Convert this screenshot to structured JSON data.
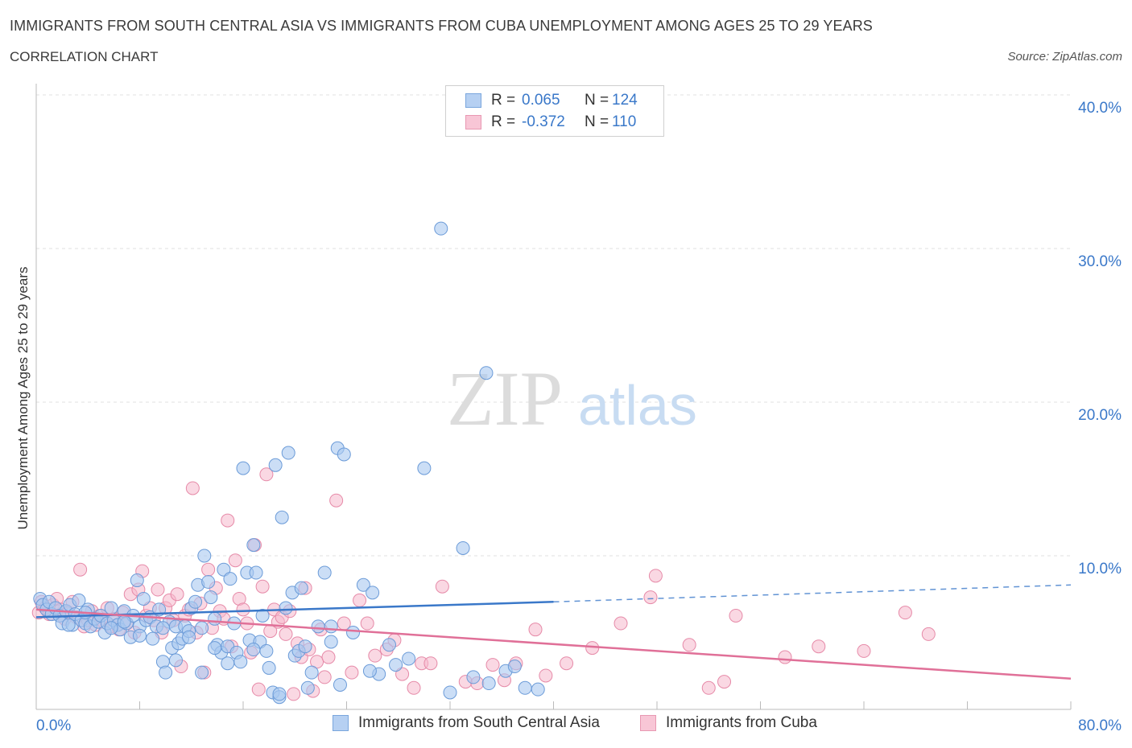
{
  "header": {
    "title": "IMMIGRANTS FROM SOUTH CENTRAL ASIA VS IMMIGRANTS FROM CUBA UNEMPLOYMENT AMONG AGES 25 TO 29 YEARS",
    "subtitle": "CORRELATION CHART",
    "source": "Source: ZipAtlas.com"
  },
  "legend": {
    "r_label": "R =",
    "n_label": "N =",
    "series1": {
      "r": "0.065",
      "n": "124"
    },
    "series2": {
      "r": "-0.372",
      "n": "110"
    }
  },
  "watermark": {
    "zip": "ZIP",
    "atlas": "atlas"
  },
  "colors": {
    "blue_fill": "#a8c8f0",
    "blue_stroke": "#6b9bd8",
    "blue_line": "#3a78c9",
    "pink_fill": "#f5b8cc",
    "pink_stroke": "#e68aa8",
    "pink_line": "#e07098",
    "axis_text": "#3a78c9"
  },
  "chart_data": {
    "type": "scatter",
    "title": "IMMIGRANTS FROM SOUTH CENTRAL ASIA VS IMMIGRANTS FROM CUBA UNEMPLOYMENT AMONG AGES 25 TO 29 YEARS",
    "xlabel": "",
    "ylabel": "Unemployment Among Ages 25 to 29 years",
    "xlim": [
      0,
      80
    ],
    "ylim": [
      0,
      40
    ],
    "x_tick_labels": [
      "0.0%",
      "80.0%"
    ],
    "y_ticks": [
      10,
      20,
      30,
      40
    ],
    "y_tick_labels": [
      "10.0%",
      "20.0%",
      "30.0%",
      "40.0%"
    ],
    "grid": true,
    "legend_position": "top-center",
    "series": [
      {
        "name": "Immigrants from South Central Asia",
        "color": "#a8c8f0",
        "trend": {
          "x": [
            0,
            40
          ],
          "y": [
            6.0,
            7.0
          ],
          "dashed_to": [
            80,
            8.1
          ]
        },
        "points": [
          [
            0.3,
            7.2
          ],
          [
            0.5,
            6.8
          ],
          [
            0.8,
            6.5
          ],
          [
            1.0,
            7.0
          ],
          [
            1.2,
            6.2
          ],
          [
            1.5,
            6.6
          ],
          [
            1.8,
            6.1
          ],
          [
            2.0,
            5.6
          ],
          [
            2.3,
            6.4
          ],
          [
            2.6,
            6.8
          ],
          [
            2.8,
            5.5
          ],
          [
            3.0,
            6.2
          ],
          [
            3.3,
            7.1
          ],
          [
            3.5,
            5.8
          ],
          [
            3.8,
            5.6
          ],
          [
            4.0,
            6.5
          ],
          [
            4.2,
            5.4
          ],
          [
            4.5,
            5.9
          ],
          [
            4.8,
            5.7
          ],
          [
            5.0,
            6.1
          ],
          [
            5.3,
            5.0
          ],
          [
            5.5,
            5.6
          ],
          [
            5.8,
            6.6
          ],
          [
            6.0,
            5.8
          ],
          [
            6.3,
            5.5
          ],
          [
            6.5,
            5.2
          ],
          [
            6.8,
            6.4
          ],
          [
            7.0,
            5.6
          ],
          [
            7.3,
            4.7
          ],
          [
            7.5,
            6.1
          ],
          [
            7.8,
            8.4
          ],
          [
            8.0,
            5.4
          ],
          [
            8.3,
            7.2
          ],
          [
            8.5,
            5.8
          ],
          [
            8.8,
            6.0
          ],
          [
            9.0,
            4.6
          ],
          [
            9.3,
            5.4
          ],
          [
            9.5,
            6.5
          ],
          [
            9.8,
            3.1
          ],
          [
            10.0,
            2.4
          ],
          [
            10.3,
            5.7
          ],
          [
            10.5,
            4.0
          ],
          [
            10.8,
            5.4
          ],
          [
            11.0,
            4.3
          ],
          [
            11.3,
            4.6
          ],
          [
            11.5,
            5.4
          ],
          [
            11.8,
            5.1
          ],
          [
            12.0,
            6.6
          ],
          [
            12.3,
            7.0
          ],
          [
            12.5,
            8.1
          ],
          [
            12.8,
            5.3
          ],
          [
            13.0,
            10.0
          ],
          [
            13.3,
            8.3
          ],
          [
            13.5,
            7.3
          ],
          [
            13.8,
            5.9
          ],
          [
            14.0,
            4.2
          ],
          [
            14.3,
            3.7
          ],
          [
            14.5,
            9.1
          ],
          [
            14.8,
            4.1
          ],
          [
            15.0,
            8.5
          ],
          [
            15.3,
            5.6
          ],
          [
            15.5,
            3.7
          ],
          [
            15.8,
            3.1
          ],
          [
            16.0,
            15.7
          ],
          [
            16.3,
            8.9
          ],
          [
            16.5,
            4.5
          ],
          [
            16.8,
            10.7
          ],
          [
            17.0,
            8.9
          ],
          [
            17.3,
            4.4
          ],
          [
            17.5,
            6.1
          ],
          [
            17.8,
            3.8
          ],
          [
            18.0,
            2.7
          ],
          [
            18.3,
            1.1
          ],
          [
            18.5,
            15.9
          ],
          [
            18.8,
            0.8
          ],
          [
            19.0,
            12.5
          ],
          [
            19.3,
            6.6
          ],
          [
            19.5,
            16.7
          ],
          [
            19.8,
            7.6
          ],
          [
            20.0,
            3.5
          ],
          [
            20.3,
            3.8
          ],
          [
            20.5,
            7.9
          ],
          [
            21.0,
            1.4
          ],
          [
            21.3,
            2.4
          ],
          [
            21.8,
            5.4
          ],
          [
            22.3,
            8.9
          ],
          [
            22.8,
            4.4
          ],
          [
            23.3,
            17.0
          ],
          [
            23.8,
            16.6
          ],
          [
            23.5,
            1.6
          ],
          [
            24.5,
            5.0
          ],
          [
            25.3,
            8.1
          ],
          [
            26.0,
            7.6
          ],
          [
            26.5,
            2.3
          ],
          [
            27.3,
            4.2
          ],
          [
            27.8,
            2.9
          ],
          [
            28.8,
            3.3
          ],
          [
            30.0,
            15.7
          ],
          [
            31.3,
            31.3
          ],
          [
            32.0,
            1.1
          ],
          [
            33.0,
            10.5
          ],
          [
            33.8,
            2.1
          ],
          [
            34.8,
            21.9
          ],
          [
            35.0,
            1.7
          ],
          [
            36.3,
            2.5
          ],
          [
            37.0,
            2.8
          ],
          [
            37.8,
            1.4
          ],
          [
            38.8,
            1.3
          ],
          [
            2.5,
            5.5
          ],
          [
            3.8,
            6.3
          ],
          [
            5.8,
            5.3
          ],
          [
            6.8,
            5.7
          ],
          [
            8.0,
            4.8
          ],
          [
            9.8,
            5.3
          ],
          [
            10.8,
            3.2
          ],
          [
            11.8,
            4.7
          ],
          [
            12.8,
            2.4
          ],
          [
            13.8,
            4.0
          ],
          [
            14.8,
            3.0
          ],
          [
            16.8,
            3.9
          ],
          [
            18.8,
            1.0
          ],
          [
            20.8,
            4.1
          ],
          [
            22.8,
            5.4
          ],
          [
            25.8,
            2.5
          ]
        ]
      },
      {
        "name": "Immigrants from Cuba",
        "color": "#f5b8cc",
        "trend": {
          "x": [
            0,
            80
          ],
          "y": [
            6.5,
            2.0
          ]
        },
        "points": [
          [
            0.2,
            6.3
          ],
          [
            0.4,
            7.0
          ],
          [
            0.7,
            6.6
          ],
          [
            1.0,
            6.2
          ],
          [
            1.3,
            6.8
          ],
          [
            1.6,
            7.2
          ],
          [
            1.9,
            6.5
          ],
          [
            2.2,
            5.9
          ],
          [
            2.5,
            6.3
          ],
          [
            2.8,
            7.0
          ],
          [
            3.1,
            6.0
          ],
          [
            3.4,
            9.1
          ],
          [
            3.7,
            5.4
          ],
          [
            4.0,
            5.8
          ],
          [
            4.3,
            6.4
          ],
          [
            4.6,
            5.5
          ],
          [
            4.9,
            6.1
          ],
          [
            5.2,
            5.7
          ],
          [
            5.5,
            6.6
          ],
          [
            5.8,
            5.4
          ],
          [
            6.1,
            5.9
          ],
          [
            6.4,
            5.2
          ],
          [
            6.7,
            6.3
          ],
          [
            7.0,
            5.6
          ],
          [
            7.3,
            7.5
          ],
          [
            7.6,
            5.0
          ],
          [
            7.9,
            7.8
          ],
          [
            8.2,
            9.0
          ],
          [
            8.5,
            6.1
          ],
          [
            8.8,
            6.6
          ],
          [
            9.1,
            5.8
          ],
          [
            9.4,
            7.8
          ],
          [
            9.7,
            5.0
          ],
          [
            10.0,
            6.6
          ],
          [
            10.3,
            7.1
          ],
          [
            10.6,
            5.8
          ],
          [
            10.9,
            7.5
          ],
          [
            11.2,
            2.8
          ],
          [
            11.5,
            6.1
          ],
          [
            11.8,
            6.5
          ],
          [
            12.1,
            14.4
          ],
          [
            12.4,
            5.0
          ],
          [
            12.7,
            6.9
          ],
          [
            13.0,
            2.4
          ],
          [
            13.3,
            9.1
          ],
          [
            13.6,
            5.3
          ],
          [
            13.9,
            7.9
          ],
          [
            14.2,
            6.4
          ],
          [
            14.5,
            5.9
          ],
          [
            14.8,
            12.3
          ],
          [
            15.1,
            4.1
          ],
          [
            15.4,
            9.7
          ],
          [
            15.7,
            7.2
          ],
          [
            16.0,
            6.5
          ],
          [
            16.3,
            5.6
          ],
          [
            16.6,
            3.7
          ],
          [
            16.9,
            10.7
          ],
          [
            17.2,
            1.3
          ],
          [
            17.5,
            8.0
          ],
          [
            17.8,
            15.3
          ],
          [
            18.1,
            5.1
          ],
          [
            18.4,
            6.5
          ],
          [
            18.7,
            5.7
          ],
          [
            19.0,
            6.0
          ],
          [
            19.3,
            4.9
          ],
          [
            19.6,
            6.4
          ],
          [
            19.9,
            1.0
          ],
          [
            20.2,
            4.3
          ],
          [
            20.5,
            3.4
          ],
          [
            20.8,
            7.9
          ],
          [
            21.1,
            3.9
          ],
          [
            21.4,
            1.2
          ],
          [
            21.7,
            3.1
          ],
          [
            22.0,
            5.2
          ],
          [
            22.3,
            2.1
          ],
          [
            22.6,
            3.4
          ],
          [
            23.2,
            13.6
          ],
          [
            23.8,
            5.6
          ],
          [
            24.4,
            2.4
          ],
          [
            25.0,
            7.1
          ],
          [
            25.6,
            5.6
          ],
          [
            26.2,
            3.5
          ],
          [
            27.1,
            3.9
          ],
          [
            27.7,
            4.5
          ],
          [
            28.3,
            2.3
          ],
          [
            29.2,
            1.4
          ],
          [
            29.8,
            3.0
          ],
          [
            30.5,
            3.0
          ],
          [
            31.4,
            8.0
          ],
          [
            33.2,
            1.8
          ],
          [
            34.1,
            1.7
          ],
          [
            35.3,
            2.9
          ],
          [
            36.2,
            1.9
          ],
          [
            37.1,
            3.0
          ],
          [
            38.6,
            5.2
          ],
          [
            39.4,
            2.2
          ],
          [
            41.0,
            3.0
          ],
          [
            43.0,
            4.0
          ],
          [
            45.2,
            5.6
          ],
          [
            47.5,
            7.3
          ],
          [
            47.9,
            8.7
          ],
          [
            50.5,
            4.2
          ],
          [
            52.0,
            1.4
          ],
          [
            53.2,
            1.8
          ],
          [
            54.1,
            6.1
          ],
          [
            57.9,
            3.4
          ],
          [
            60.5,
            4.1
          ],
          [
            64.0,
            3.8
          ],
          [
            67.2,
            6.3
          ],
          [
            69.0,
            4.9
          ]
        ]
      }
    ]
  },
  "bottom_legend": {
    "series1": "Immigrants from South Central Asia",
    "series2": "Immigrants from Cuba"
  }
}
